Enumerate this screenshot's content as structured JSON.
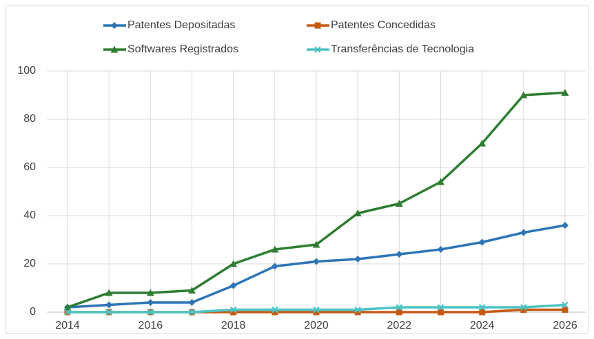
{
  "chart_data": {
    "type": "line",
    "x": [
      2014,
      2015,
      2016,
      2017,
      2018,
      2019,
      2020,
      2021,
      2022,
      2023,
      2024,
      2025,
      2026
    ],
    "series": [
      {
        "name": "Patentes Depositadas",
        "color": "#2e75b6",
        "marker": "diamond",
        "values": [
          2,
          3,
          4,
          4,
          11,
          19,
          21,
          22,
          24,
          26,
          29,
          33,
          36
        ]
      },
      {
        "name": "Patentes Concedidas",
        "color": "#c55a11",
        "marker": "square",
        "values": [
          0,
          0,
          0,
          0,
          0,
          0,
          0,
          0,
          0,
          0,
          0,
          1,
          1
        ]
      },
      {
        "name": "Softwares Registrados",
        "color": "#2e7d32",
        "marker": "triangle",
        "values": [
          2,
          8,
          8,
          9,
          20,
          26,
          28,
          41,
          45,
          54,
          70,
          90,
          91
        ]
      },
      {
        "name": "Transferências de Tecnologia",
        "color": "#4bc4c4",
        "marker": "x",
        "values": [
          0,
          0,
          0,
          0,
          1,
          1,
          1,
          1,
          2,
          2,
          2,
          2,
          3
        ]
      }
    ],
    "xlim": [
      2014,
      2026
    ],
    "xticks": [
      2014,
      2016,
      2018,
      2020,
      2022,
      2024,
      2026
    ],
    "ylim": [
      0,
      100
    ],
    "yticks": [
      0,
      20,
      40,
      60,
      80,
      100
    ],
    "grid": true,
    "legend": "top"
  }
}
